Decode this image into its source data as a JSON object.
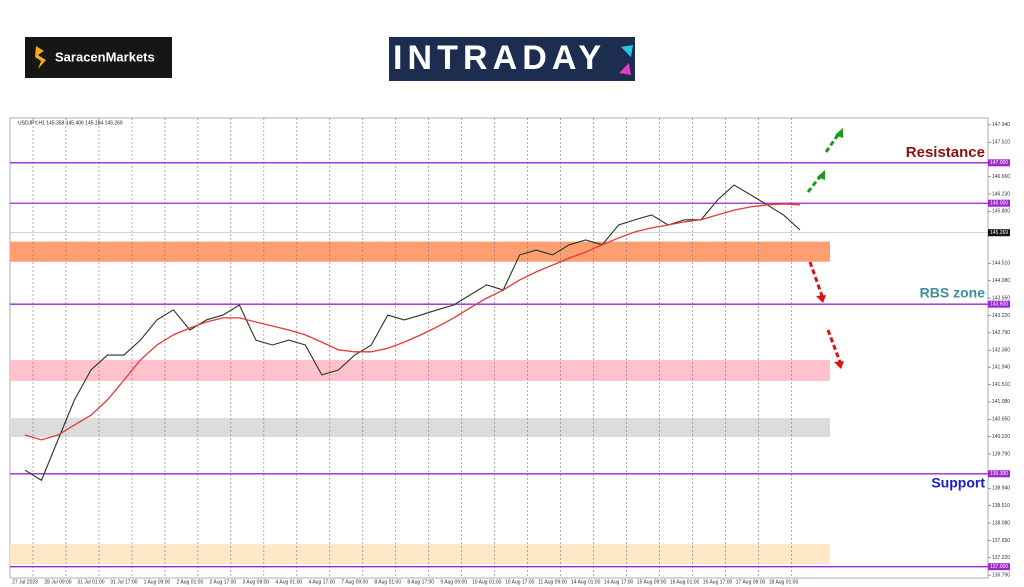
{
  "logo": "SaracenMarkets",
  "banner": "INTRADAY",
  "chart_data": {
    "type": "line",
    "title": "USDJPY,H1 145.358 145.406 145.184 145.269",
    "categories": [
      "27 Jul 2023",
      null,
      "28 Jul 09:00",
      null,
      "31 Jul 01:00",
      null,
      "31 Jul 17:00",
      null,
      "1 Aug 09:00",
      null,
      "2 Aug 01:00",
      null,
      "2 Aug 17:00",
      null,
      "3 Aug 09:00",
      null,
      "4 Aug 01:00",
      null,
      "4 Aug 17:00",
      null,
      "7 Aug 09:00",
      null,
      "8 Aug 01:00",
      null,
      "8 Aug 17:00",
      null,
      "9 Aug 09:00",
      null,
      "10 Aug 01:00",
      null,
      "10 Aug 17:00",
      null,
      "11 Aug 09:00",
      null,
      "14 Aug 01:00",
      null,
      "14 Aug 17:00",
      null,
      "15 Aug 09:00",
      null,
      "16 Aug 01:00",
      null,
      "16 Aug 17:00",
      null,
      "17 Aug 09:00",
      null,
      "18 Aug 01:00",
      null
    ],
    "series": [
      {
        "color": "#1f3a1f",
        "values": [
          139.39,
          139.14,
          140.14,
          141.13,
          141.87,
          142.24,
          142.24,
          142.61,
          143.11,
          143.36,
          142.86,
          143.11,
          143.23,
          143.48,
          142.61,
          142.49,
          142.61,
          142.49,
          141.75,
          141.87,
          142.24,
          142.49,
          143.23,
          143.11,
          143.23,
          143.36,
          143.48,
          143.73,
          143.98,
          143.85,
          144.72,
          144.84,
          144.72,
          144.97,
          145.09,
          144.97,
          145.46,
          145.59,
          145.71,
          145.46,
          145.59,
          145.59,
          146.08,
          146.45,
          146.21,
          145.96,
          145.71,
          145.34
        ]
      },
      {
        "color": "#e53935",
        "values": [
          140.26,
          140.14,
          140.26,
          140.51,
          140.75,
          141.13,
          141.62,
          142.12,
          142.49,
          142.74,
          142.91,
          143.06,
          143.16,
          143.16,
          143.06,
          142.96,
          142.86,
          142.74,
          142.56,
          142.37,
          142.32,
          142.32,
          142.41,
          142.56,
          142.74,
          142.94,
          143.16,
          143.41,
          143.65,
          143.85,
          144.1,
          144.3,
          144.47,
          144.64,
          144.79,
          144.97,
          145.14,
          145.29,
          145.39,
          145.46,
          145.54,
          145.59,
          145.71,
          145.83,
          145.91,
          145.96,
          145.98,
          145.96
        ]
      }
    ],
    "ylim": [
      136.72,
      148.11
    ],
    "yticks": [
      {
        "value": 147.94,
        "label": "147.940"
      },
      {
        "value": 147.51,
        "label": "147.510"
      },
      {
        "value": 146.66,
        "label": "146.660"
      },
      {
        "value": 146.23,
        "label": "146.230"
      },
      {
        "value": 145.8,
        "label": "145.800"
      },
      {
        "value": 144.51,
        "label": "144.510"
      },
      {
        "value": 144.08,
        "label": "144.080"
      },
      {
        "value": 143.65,
        "label": "143.650"
      },
      {
        "value": 143.22,
        "label": "143.220"
      },
      {
        "value": 142.79,
        "label": "142.790"
      },
      {
        "value": 142.36,
        "label": "142.360"
      },
      {
        "value": 141.94,
        "label": "141.940"
      },
      {
        "value": 141.51,
        "label": "141.510"
      },
      {
        "value": 141.08,
        "label": "141.080"
      },
      {
        "value": 140.65,
        "label": "140.650"
      },
      {
        "value": 140.22,
        "label": "140.220"
      },
      {
        "value": 139.79,
        "label": "139.790"
      },
      {
        "value": 138.94,
        "label": "138.940"
      },
      {
        "value": 138.51,
        "label": "138.510"
      },
      {
        "value": 138.08,
        "label": "138.080"
      },
      {
        "value": 137.65,
        "label": "137.650"
      },
      {
        "value": 137.22,
        "label": "137.220"
      },
      {
        "value": 136.79,
        "label": "136.790"
      }
    ],
    "levels": [
      {
        "value": 147,
        "label": "147.000",
        "color": "#9c27d0"
      },
      {
        "value": 146,
        "label": "146.000",
        "color": "#9c27d0"
      },
      {
        "value": 143.5,
        "label": "143.500",
        "color": "#9c27d0"
      },
      {
        "value": 139.3,
        "label": "139.300",
        "color": "#9c27d0"
      },
      {
        "value": 137,
        "label": "137.000",
        "color": "#9c27d0"
      }
    ],
    "last_price": {
      "value": 145.269,
      "label": "145.269"
    },
    "zones": [
      {
        "from": 144.55,
        "to": 145.05,
        "color": "#ff9e70"
      },
      {
        "from": 141.6,
        "to": 142.12,
        "color": "#ffc2cc"
      },
      {
        "from": 140.21,
        "to": 140.68,
        "color": "#dcdcdc"
      },
      {
        "from": 137.06,
        "to": 137.56,
        "color": "#ffe8c8"
      }
    ],
    "annotations": [
      {
        "text": "Resistance",
        "color": "#8b0f0f"
      },
      {
        "text": "RBS zone",
        "color": "#3f8f9a"
      },
      {
        "text": "Support",
        "color": "#1a1ad6"
      }
    ]
  }
}
